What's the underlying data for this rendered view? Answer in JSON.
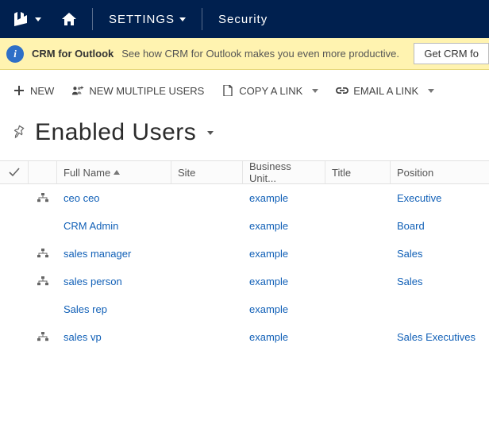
{
  "nav": {
    "settings_label": "SETTINGS",
    "security_label": "Security"
  },
  "banner": {
    "title": "CRM for Outlook",
    "desc": "See how CRM for Outlook makes you even more productive.",
    "button": "Get CRM fo"
  },
  "cmd": {
    "new": "NEW",
    "new_multi": "NEW MULTIPLE USERS",
    "copy_link": "COPY A LINK",
    "email_link": "EMAIL A LINK"
  },
  "view": {
    "title": "Enabled Users"
  },
  "columns": {
    "full_name": "Full Name",
    "site": "Site",
    "business_unit": "Business Unit...",
    "title": "Title",
    "position": "Position"
  },
  "rows": [
    {
      "has_icon": true,
      "full_name": "ceo ceo",
      "site": "",
      "bu": "example",
      "title": "",
      "position": "Executive"
    },
    {
      "has_icon": false,
      "full_name": "CRM Admin",
      "site": "",
      "bu": "example",
      "title": "",
      "position": "Board"
    },
    {
      "has_icon": true,
      "full_name": "sales manager",
      "site": "",
      "bu": "example",
      "title": "",
      "position": "Sales"
    },
    {
      "has_icon": true,
      "full_name": "sales person",
      "site": "",
      "bu": "example",
      "title": "",
      "position": "Sales"
    },
    {
      "has_icon": false,
      "full_name": "Sales rep",
      "site": "",
      "bu": "example",
      "title": "",
      "position": ""
    },
    {
      "has_icon": true,
      "full_name": "sales vp",
      "site": "",
      "bu": "example",
      "title": "",
      "position": "Sales Executives"
    }
  ],
  "colors": {
    "navbar_bg": "#00204f",
    "banner_bg": "#fff3b0",
    "link": "#1160b7"
  }
}
